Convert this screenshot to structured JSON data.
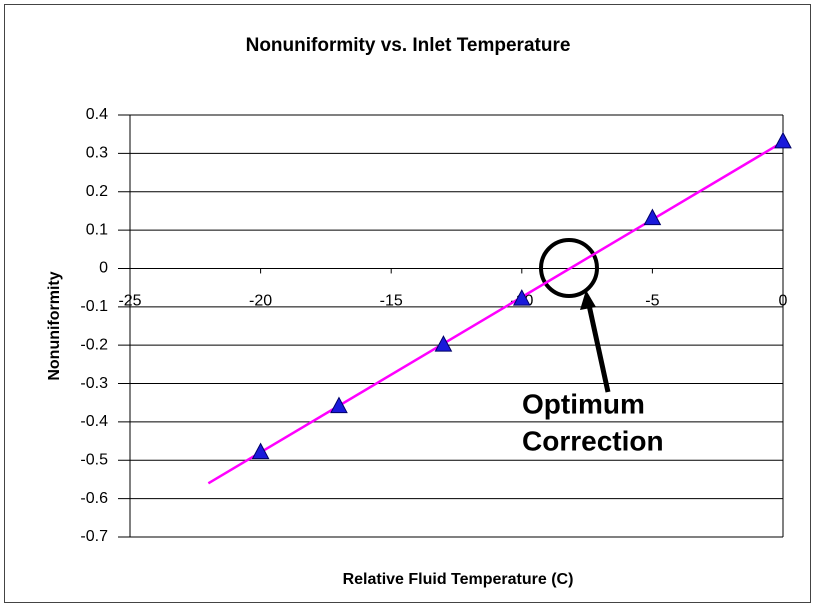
{
  "chart_data": {
    "type": "scatter",
    "title": "Nonuniformity vs. Inlet Temperature",
    "x_label": "Relative Fluid Temperature (C)",
    "y_label": "Nonuniformity",
    "x": [
      -20,
      -17,
      -13,
      -10,
      -5,
      0
    ],
    "values": [
      -0.48,
      -0.36,
      -0.2,
      -0.08,
      0.13,
      0.33
    ],
    "color": "#1a1adb",
    "trendline": {
      "x": [
        -22,
        0
      ],
      "values": [
        -0.56,
        0.33
      ],
      "color": "#ff00ff"
    },
    "annotation": [
      "Optimum",
      "Correction"
    ],
    "xlim": [
      -25,
      0
    ],
    "xticks": [
      -25,
      -20,
      -15,
      -10,
      -5,
      0
    ],
    "ylim": [
      -0.7,
      0.4
    ],
    "yticks": [
      0.4,
      0.3,
      0.2,
      0.1,
      0,
      -0.1,
      -0.2,
      -0.3,
      -0.4,
      -0.5,
      -0.6,
      -0.7
    ],
    "grid": true
  }
}
